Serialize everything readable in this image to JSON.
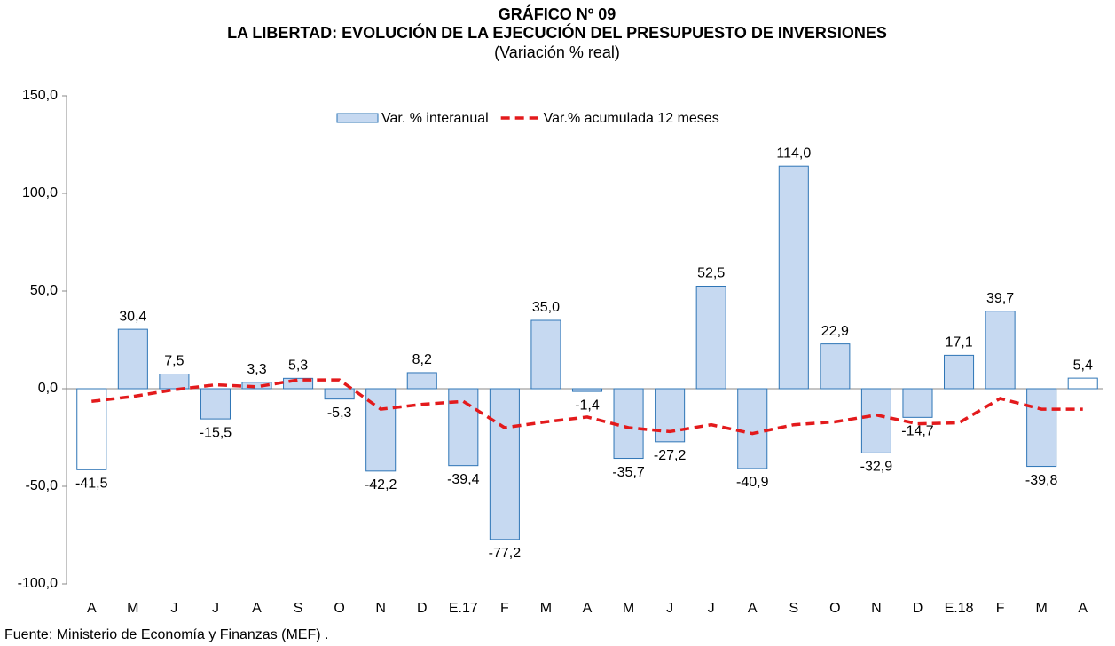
{
  "chart_data": {
    "type": "bar",
    "title": "GRÁFICO Nº 09",
    "subtitle": "LA LIBERTAD: EVOLUCIÓN DE LA EJECUCIÓN DEL PRESUPUESTO DE INVERSIONES",
    "unit_note": "(Variación % real)",
    "source": "Fuente: Ministerio de Economía y Finanzas (MEF) .",
    "categories": [
      "A",
      "M",
      "J",
      "J",
      "A",
      "S",
      "O",
      "N",
      "D",
      "E.17",
      "F",
      "M",
      "A",
      "M",
      "J",
      "J",
      "A",
      "S",
      "O",
      "N",
      "D",
      "E.18",
      "F",
      "M",
      "A"
    ],
    "series": [
      {
        "name": "Var. % interanual",
        "type": "bar",
        "color": "#c6d9f1",
        "edge_color": "#2e75b6",
        "point_colors": [
          "#ffffff",
          "#c6d9f1",
          "#c6d9f1",
          "#c6d9f1",
          "#c6d9f1",
          "#c6d9f1",
          "#c6d9f1",
          "#c6d9f1",
          "#c6d9f1",
          "#c6d9f1",
          "#c6d9f1",
          "#c6d9f1",
          "#c6d9f1",
          "#c6d9f1",
          "#c6d9f1",
          "#c6d9f1",
          "#c6d9f1",
          "#c6d9f1",
          "#c6d9f1",
          "#c6d9f1",
          "#c6d9f1",
          "#c6d9f1",
          "#c6d9f1",
          "#c6d9f1",
          "#ffffff"
        ],
        "values": [
          -41.5,
          30.4,
          7.5,
          -15.5,
          3.3,
          5.3,
          -5.3,
          -42.2,
          8.2,
          -39.4,
          -77.2,
          35.0,
          -1.4,
          -35.7,
          -27.2,
          52.5,
          -40.9,
          114.0,
          22.9,
          -32.9,
          -14.7,
          17.1,
          39.7,
          -39.8,
          5.4
        ],
        "value_labels": [
          "-41,5",
          "30,4",
          "7,5",
          "-15,5",
          "3,3",
          "5,3",
          "-5,3",
          "-42,2",
          "8,2",
          "-39,4",
          "-77,2",
          "35,0",
          "-1,4",
          "-35,7",
          "-27,2",
          "52,5",
          "-40,9",
          "114,0",
          "22,9",
          "-32,9",
          "-14,7",
          "17,1",
          "39,7",
          "-39,8",
          "5,4"
        ]
      },
      {
        "name": "Var.% acumulada 12 meses",
        "type": "line",
        "color": "#e31a1c",
        "dashed": true,
        "values": [
          -6.5,
          -4,
          -0.5,
          2,
          1,
          4.5,
          4.5,
          -10.5,
          -8,
          -6.5,
          -20,
          -17,
          -14.5,
          -20,
          -22,
          -18.5,
          -23,
          -18.5,
          -17,
          -13.5,
          -18,
          -17.5,
          -5,
          -10.5,
          -10.5
        ]
      }
    ],
    "ylim": [
      -100,
      150
    ],
    "yticks": [
      {
        "value": -100,
        "label": "-100,0"
      },
      {
        "value": -50,
        "label": "-50,0"
      },
      {
        "value": 0,
        "label": "0,0"
      },
      {
        "value": 50,
        "label": "50,0"
      },
      {
        "value": 100,
        "label": "100,0"
      },
      {
        "value": 150,
        "label": "150,0"
      }
    ]
  }
}
